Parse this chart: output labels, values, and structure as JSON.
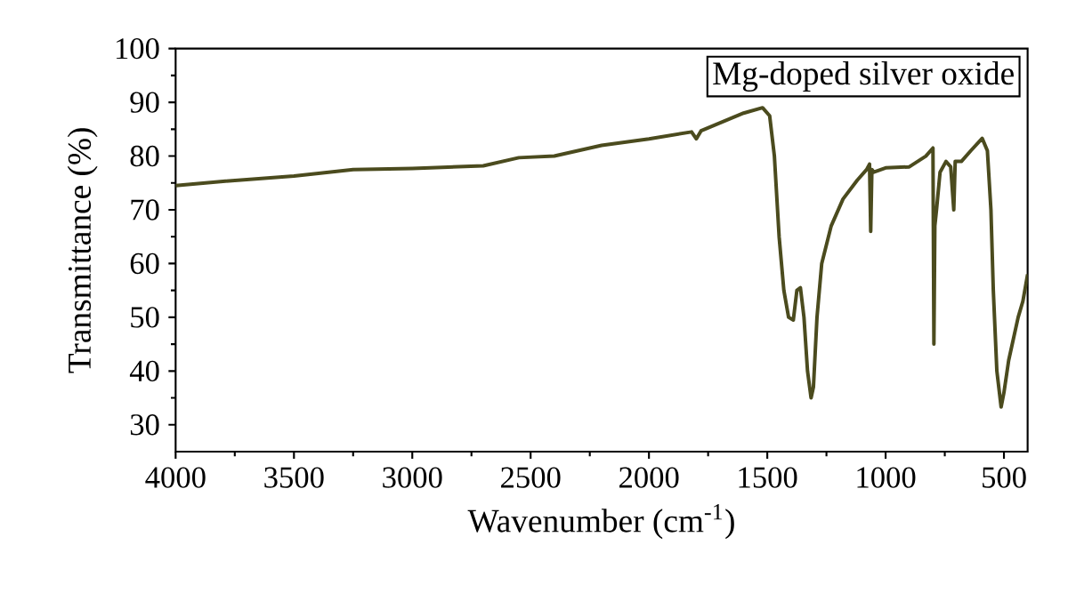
{
  "chart_data": {
    "type": "line",
    "xlabel": "Wavenumber (cm$^{-1}$)",
    "ylabel": "Transmittance (%)",
    "annotations": [
      "Mg-doped silver oxide"
    ],
    "xlim": [
      4000,
      400
    ],
    "ylim": [
      25,
      100
    ],
    "xticks": [
      4000,
      3500,
      3000,
      2500,
      2000,
      1500,
      1000,
      500
    ],
    "yticks": [
      30,
      40,
      50,
      60,
      70,
      80,
      90,
      100
    ],
    "grid": false,
    "marker": "none",
    "line_style": "solid",
    "series": [
      {
        "color": "#4b4b1e",
        "x": [
          4000,
          3800,
          3500,
          3250,
          3000,
          2700,
          2550,
          2400,
          2200,
          2000,
          1820,
          1800,
          1780,
          1600,
          1520,
          1490,
          1470,
          1450,
          1430,
          1410,
          1390,
          1375,
          1360,
          1345,
          1330,
          1315,
          1305,
          1290,
          1270,
          1230,
          1180,
          1120,
          1080,
          1068,
          1063,
          1058,
          1050,
          1000,
          900,
          830,
          800,
          796,
          792,
          785,
          770,
          745,
          725,
          712,
          706,
          700,
          680,
          640,
          592,
          570,
          555,
          545,
          530,
          512,
          500,
          480,
          440,
          420,
          400
        ],
        "values": [
          74.5,
          75.3,
          76.3,
          77.5,
          77.7,
          78.2,
          79.7,
          80,
          82,
          83.2,
          84.5,
          83.2,
          84.7,
          88,
          89,
          87.5,
          80,
          65,
          55,
          50,
          49.5,
          55,
          55.5,
          50,
          40,
          35,
          37,
          50,
          60,
          67,
          72,
          75.5,
          77.5,
          78.5,
          66,
          77.5,
          77,
          77.8,
          78,
          80,
          81.5,
          45,
          67,
          70,
          77,
          79,
          78,
          70,
          79,
          79,
          79,
          81,
          83.3,
          81,
          70,
          55,
          40,
          33.3,
          36,
          42,
          50,
          53,
          58
        ]
      }
    ]
  }
}
